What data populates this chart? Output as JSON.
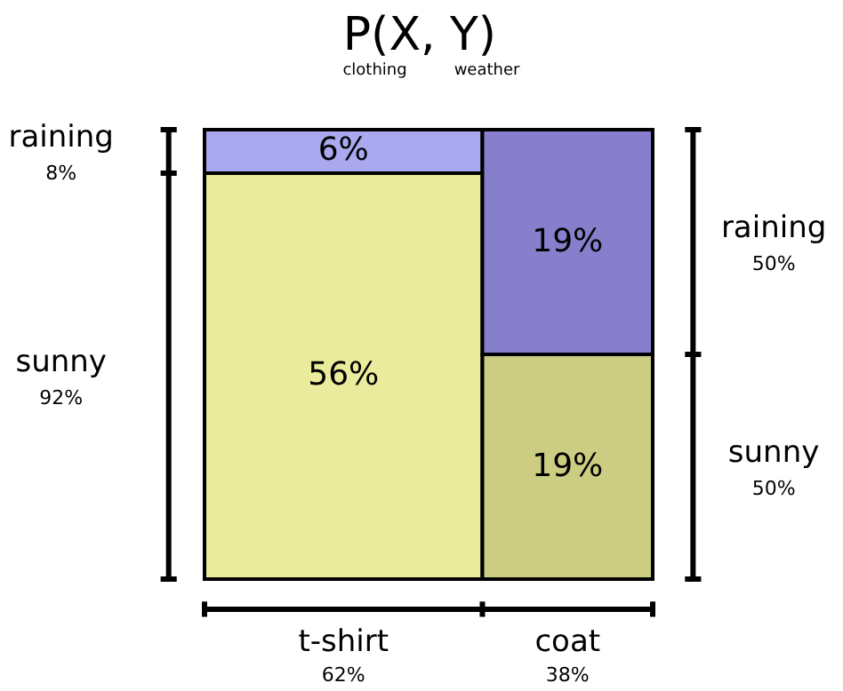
{
  "chart_data": {
    "type": "other",
    "title": "P(X,  Y)",
    "categories": [
      "t-shirt",
      "coat"
    ],
    "series": [
      {
        "name": "sunny",
        "colors": [
          "#ebeb9d",
          "#cccc82"
        ],
        "values": [
          56,
          19
        ],
        "value_labels": [
          "56%",
          "19%"
        ]
      },
      {
        "name": "raining",
        "colors": [
          "#aaa8ee",
          "#877fcc"
        ],
        "values": [
          6,
          19
        ],
        "value_labels": [
          "6%",
          "19%"
        ]
      }
    ],
    "annotations": [
      "clothing",
      "weather",
      "62%",
      "38%",
      "92%",
      "8%",
      "50%",
      "50%"
    ]
  }
}
